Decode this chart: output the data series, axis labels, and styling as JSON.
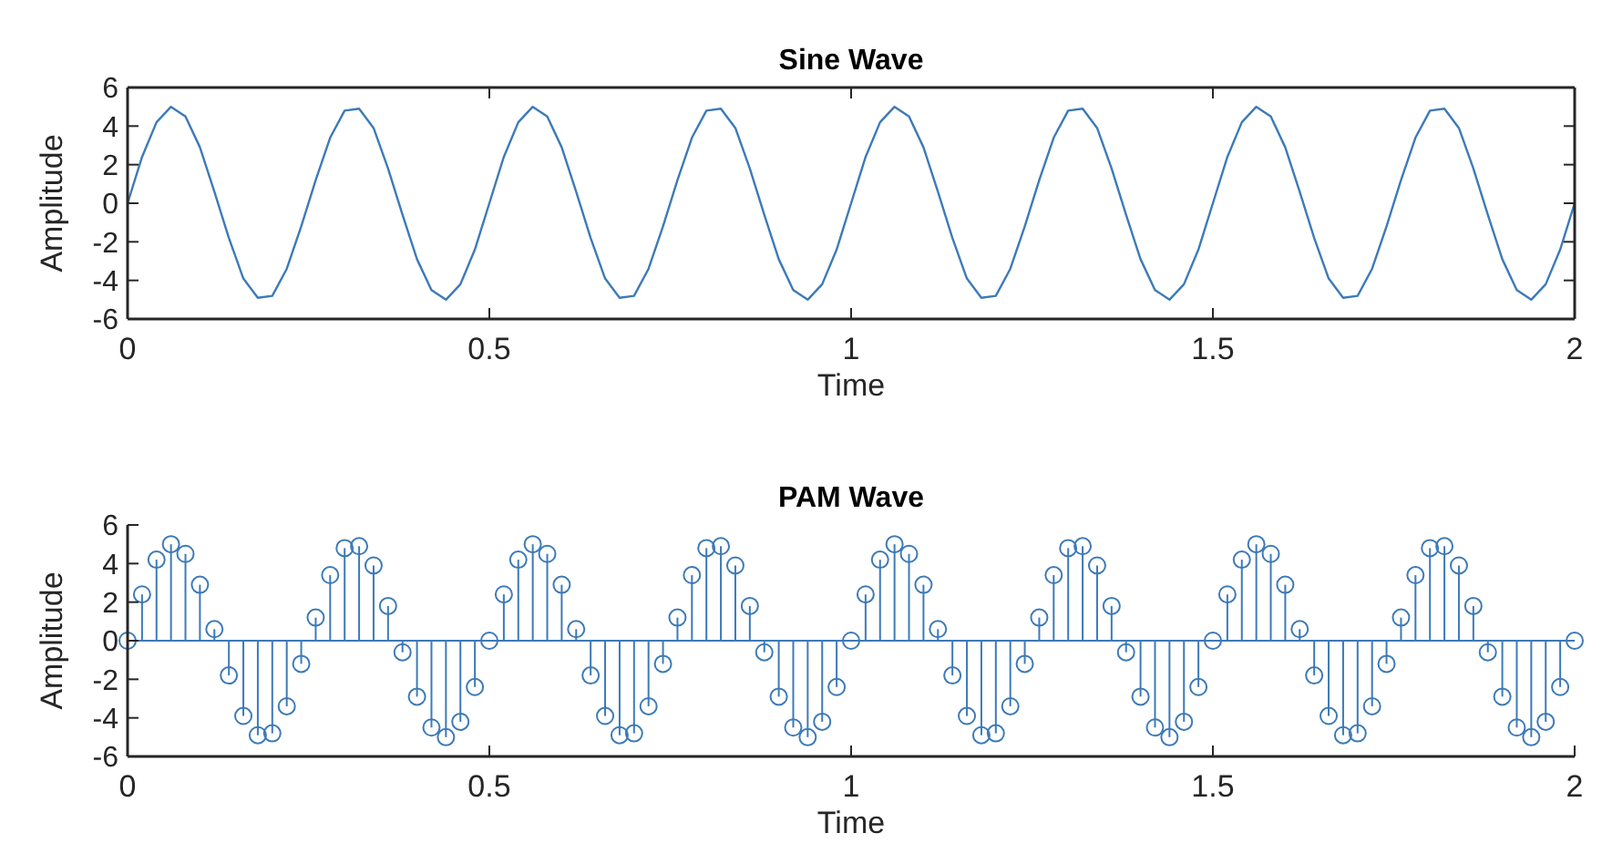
{
  "chart_data": [
    {
      "type": "line",
      "title": "Sine Wave",
      "xlabel": "Time",
      "ylabel": "Amplitude",
      "x": [
        0,
        0.02,
        0.04,
        0.06,
        0.08,
        0.1,
        0.12,
        0.14,
        0.16,
        0.18,
        0.2,
        0.22,
        0.24,
        0.26,
        0.28,
        0.3,
        0.32,
        0.34,
        0.36,
        0.38,
        0.4,
        0.42,
        0.44,
        0.46,
        0.48,
        0.5,
        0.52,
        0.54,
        0.56,
        0.58,
        0.6,
        0.62,
        0.64,
        0.66,
        0.68,
        0.7,
        0.72,
        0.74,
        0.76,
        0.78,
        0.8,
        0.82,
        0.84,
        0.86,
        0.88,
        0.9,
        0.92,
        0.94,
        0.96,
        0.98,
        1,
        1.02,
        1.04,
        1.06,
        1.08,
        1.1,
        1.12,
        1.14,
        1.16,
        1.18,
        1.2,
        1.22,
        1.24,
        1.26,
        1.28,
        1.3,
        1.32,
        1.34,
        1.36,
        1.38,
        1.4,
        1.42,
        1.44,
        1.46,
        1.48,
        1.5,
        1.52,
        1.54,
        1.56,
        1.58,
        1.6,
        1.62,
        1.64,
        1.66,
        1.68,
        1.7,
        1.72,
        1.74,
        1.76,
        1.78,
        1.8,
        1.82,
        1.84,
        1.86,
        1.88,
        1.9,
        1.92,
        1.94,
        1.96,
        1.98,
        2
      ],
      "series": [
        {
          "color": "#3d7ab8",
          "values": [
            0,
            2.4,
            4.2,
            5.0,
            4.5,
            2.9,
            0.6,
            -1.8,
            -3.9,
            -4.9,
            -4.8,
            -3.4,
            -1.2,
            1.2,
            3.4,
            4.8,
            4.9,
            3.9,
            1.8,
            -0.6,
            -2.9,
            -4.5,
            -5.0,
            -4.2,
            -2.4,
            0,
            2.4,
            4.2,
            5.0,
            4.5,
            2.9,
            0.6,
            -1.8,
            -3.9,
            -4.9,
            -4.8,
            -3.4,
            -1.2,
            1.2,
            3.4,
            4.8,
            4.9,
            3.9,
            1.8,
            -0.6,
            -2.9,
            -4.5,
            -5.0,
            -4.2,
            -2.4,
            0,
            2.4,
            4.2,
            5.0,
            4.5,
            2.9,
            0.6,
            -1.8,
            -3.9,
            -4.9,
            -4.8,
            -3.4,
            -1.2,
            1.2,
            3.4,
            4.8,
            4.9,
            3.9,
            1.8,
            -0.6,
            -2.9,
            -4.5,
            -5.0,
            -4.2,
            -2.4,
            0,
            2.4,
            4.2,
            5.0,
            4.5,
            2.9,
            0.6,
            -1.8,
            -3.9,
            -4.9,
            -4.8,
            -3.4,
            -1.2,
            1.2,
            3.4,
            4.8,
            4.9,
            3.9,
            1.8,
            -0.6,
            -2.9,
            -4.5,
            -5.0,
            -4.2,
            -2.4,
            0
          ]
        }
      ],
      "xlim": [
        0,
        2
      ],
      "xticks": [
        0,
        0.5,
        1,
        1.5,
        2
      ],
      "ylim": [
        -6,
        6
      ],
      "yticks": [
        -6,
        -4,
        -2,
        0,
        2,
        4,
        6
      ],
      "marker": "none",
      "line_style": "solid"
    },
    {
      "type": "lollipop",
      "title": "PAM Wave",
      "xlabel": "Time",
      "ylabel": "Amplitude",
      "x": [
        0,
        0.02,
        0.04,
        0.06,
        0.08,
        0.1,
        0.12,
        0.14,
        0.16,
        0.18,
        0.2,
        0.22,
        0.24,
        0.26,
        0.28,
        0.3,
        0.32,
        0.34,
        0.36,
        0.38,
        0.4,
        0.42,
        0.44,
        0.46,
        0.48,
        0.5,
        0.52,
        0.54,
        0.56,
        0.58,
        0.6,
        0.62,
        0.64,
        0.66,
        0.68,
        0.7,
        0.72,
        0.74,
        0.76,
        0.78,
        0.8,
        0.82,
        0.84,
        0.86,
        0.88,
        0.9,
        0.92,
        0.94,
        0.96,
        0.98,
        1,
        1.02,
        1.04,
        1.06,
        1.08,
        1.1,
        1.12,
        1.14,
        1.16,
        1.18,
        1.2,
        1.22,
        1.24,
        1.26,
        1.28,
        1.3,
        1.32,
        1.34,
        1.36,
        1.38,
        1.4,
        1.42,
        1.44,
        1.46,
        1.48,
        1.5,
        1.52,
        1.54,
        1.56,
        1.58,
        1.6,
        1.62,
        1.64,
        1.66,
        1.68,
        1.7,
        1.72,
        1.74,
        1.76,
        1.78,
        1.8,
        1.82,
        1.84,
        1.86,
        1.88,
        1.9,
        1.92,
        1.94,
        1.96,
        1.98,
        2
      ],
      "series": [
        {
          "color": "#3d7ab8",
          "values": [
            0,
            2.4,
            4.2,
            5.0,
            4.5,
            2.9,
            0.6,
            -1.8,
            -3.9,
            -4.9,
            -4.8,
            -3.4,
            -1.2,
            1.2,
            3.4,
            4.8,
            4.9,
            3.9,
            1.8,
            -0.6,
            -2.9,
            -4.5,
            -5.0,
            -4.2,
            -2.4,
            0,
            2.4,
            4.2,
            5.0,
            4.5,
            2.9,
            0.6,
            -1.8,
            -3.9,
            -4.9,
            -4.8,
            -3.4,
            -1.2,
            1.2,
            3.4,
            4.8,
            4.9,
            3.9,
            1.8,
            -0.6,
            -2.9,
            -4.5,
            -5.0,
            -4.2,
            -2.4,
            0,
            2.4,
            4.2,
            5.0,
            4.5,
            2.9,
            0.6,
            -1.8,
            -3.9,
            -4.9,
            -4.8,
            -3.4,
            -1.2,
            1.2,
            3.4,
            4.8,
            4.9,
            3.9,
            1.8,
            -0.6,
            -2.9,
            -4.5,
            -5.0,
            -4.2,
            -2.4,
            0,
            2.4,
            4.2,
            5.0,
            4.5,
            2.9,
            0.6,
            -1.8,
            -3.9,
            -4.9,
            -4.8,
            -3.4,
            -1.2,
            1.2,
            3.4,
            4.8,
            4.9,
            3.9,
            1.8,
            -0.6,
            -2.9,
            -4.5,
            -5.0,
            -4.2,
            -2.4,
            0
          ]
        }
      ],
      "xlim": [
        0,
        2
      ],
      "xticks": [
        0,
        0.5,
        1,
        1.5,
        2
      ],
      "ylim": [
        -6,
        6
      ],
      "yticks": [
        -6,
        -4,
        -2,
        0,
        2,
        4,
        6
      ],
      "marker": "circle",
      "ref_lines": [
        {
          "axis": "y",
          "value": 0,
          "color": "#3d7ab8"
        }
      ]
    }
  ]
}
